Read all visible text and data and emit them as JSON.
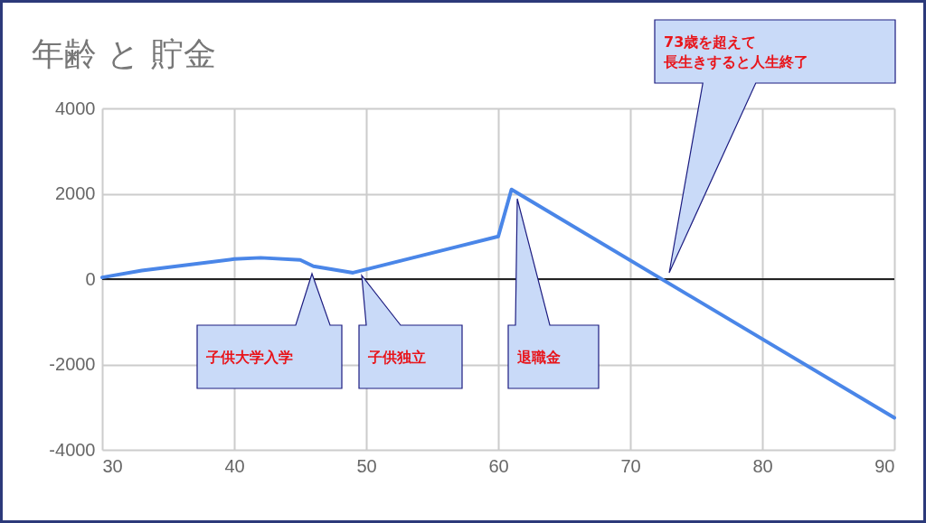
{
  "chart_data": {
    "type": "line",
    "title": "年齢 と 貯金",
    "x": [
      30,
      33,
      40,
      42,
      45,
      46,
      49,
      60,
      61,
      90
    ],
    "series": [
      {
        "color": "#4a86e8",
        "values": [
          40,
          200,
          470,
          500,
          450,
          300,
          150,
          1000,
          2100,
          -3250
        ]
      }
    ],
    "xlim": [
      30,
      90
    ],
    "xticks": [
      30,
      40,
      50,
      60,
      70,
      80,
      90
    ],
    "ylim": [
      -4000,
      4000
    ],
    "yticks": [
      -4000,
      -2000,
      0,
      2000,
      4000
    ],
    "grid": true,
    "marker": "none",
    "line_style": "solid",
    "ref_lines": [
      {
        "axis": "y",
        "value": 0,
        "color": "#222222"
      }
    ],
    "annotations": [
      "子供大学入学",
      "子供独立",
      "退職金",
      "73歳を超えて長生きすると人生終了"
    ]
  }
}
